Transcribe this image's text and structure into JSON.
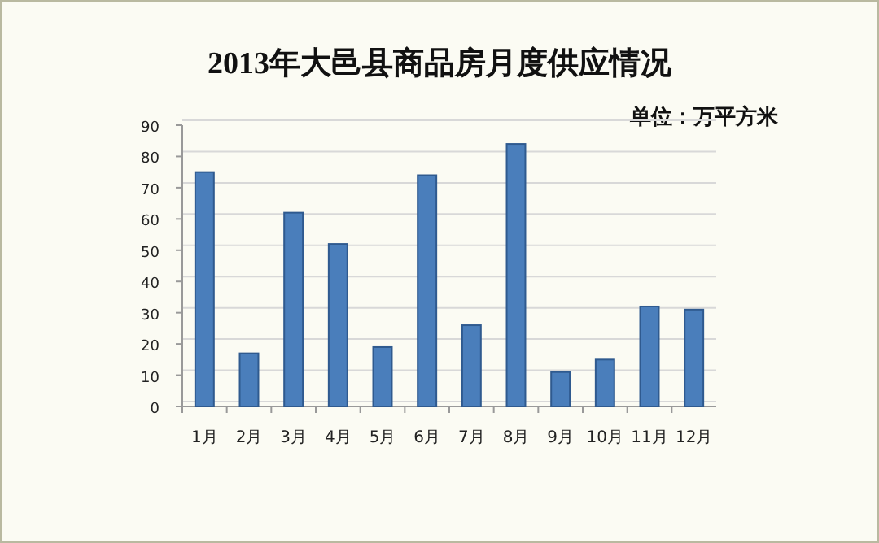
{
  "chart_data": {
    "type": "bar",
    "title": "2013年大邑县商品房月度供应情况",
    "annotations": [
      "单位：万平方米"
    ],
    "categories": [
      "1月",
      "2月",
      "3月",
      "4月",
      "5月",
      "6月",
      "7月",
      "8月",
      "9月",
      "10月",
      "11月",
      "12月"
    ],
    "values": [
      75,
      17,
      62,
      52,
      19,
      74,
      26,
      84,
      11,
      15,
      32,
      31
    ],
    "color": "#4a7ebb",
    "ylim": [
      0,
      90
    ],
    "yticks": [
      0,
      10,
      20,
      30,
      40,
      50,
      60,
      70,
      80,
      90
    ],
    "grid": "y"
  }
}
